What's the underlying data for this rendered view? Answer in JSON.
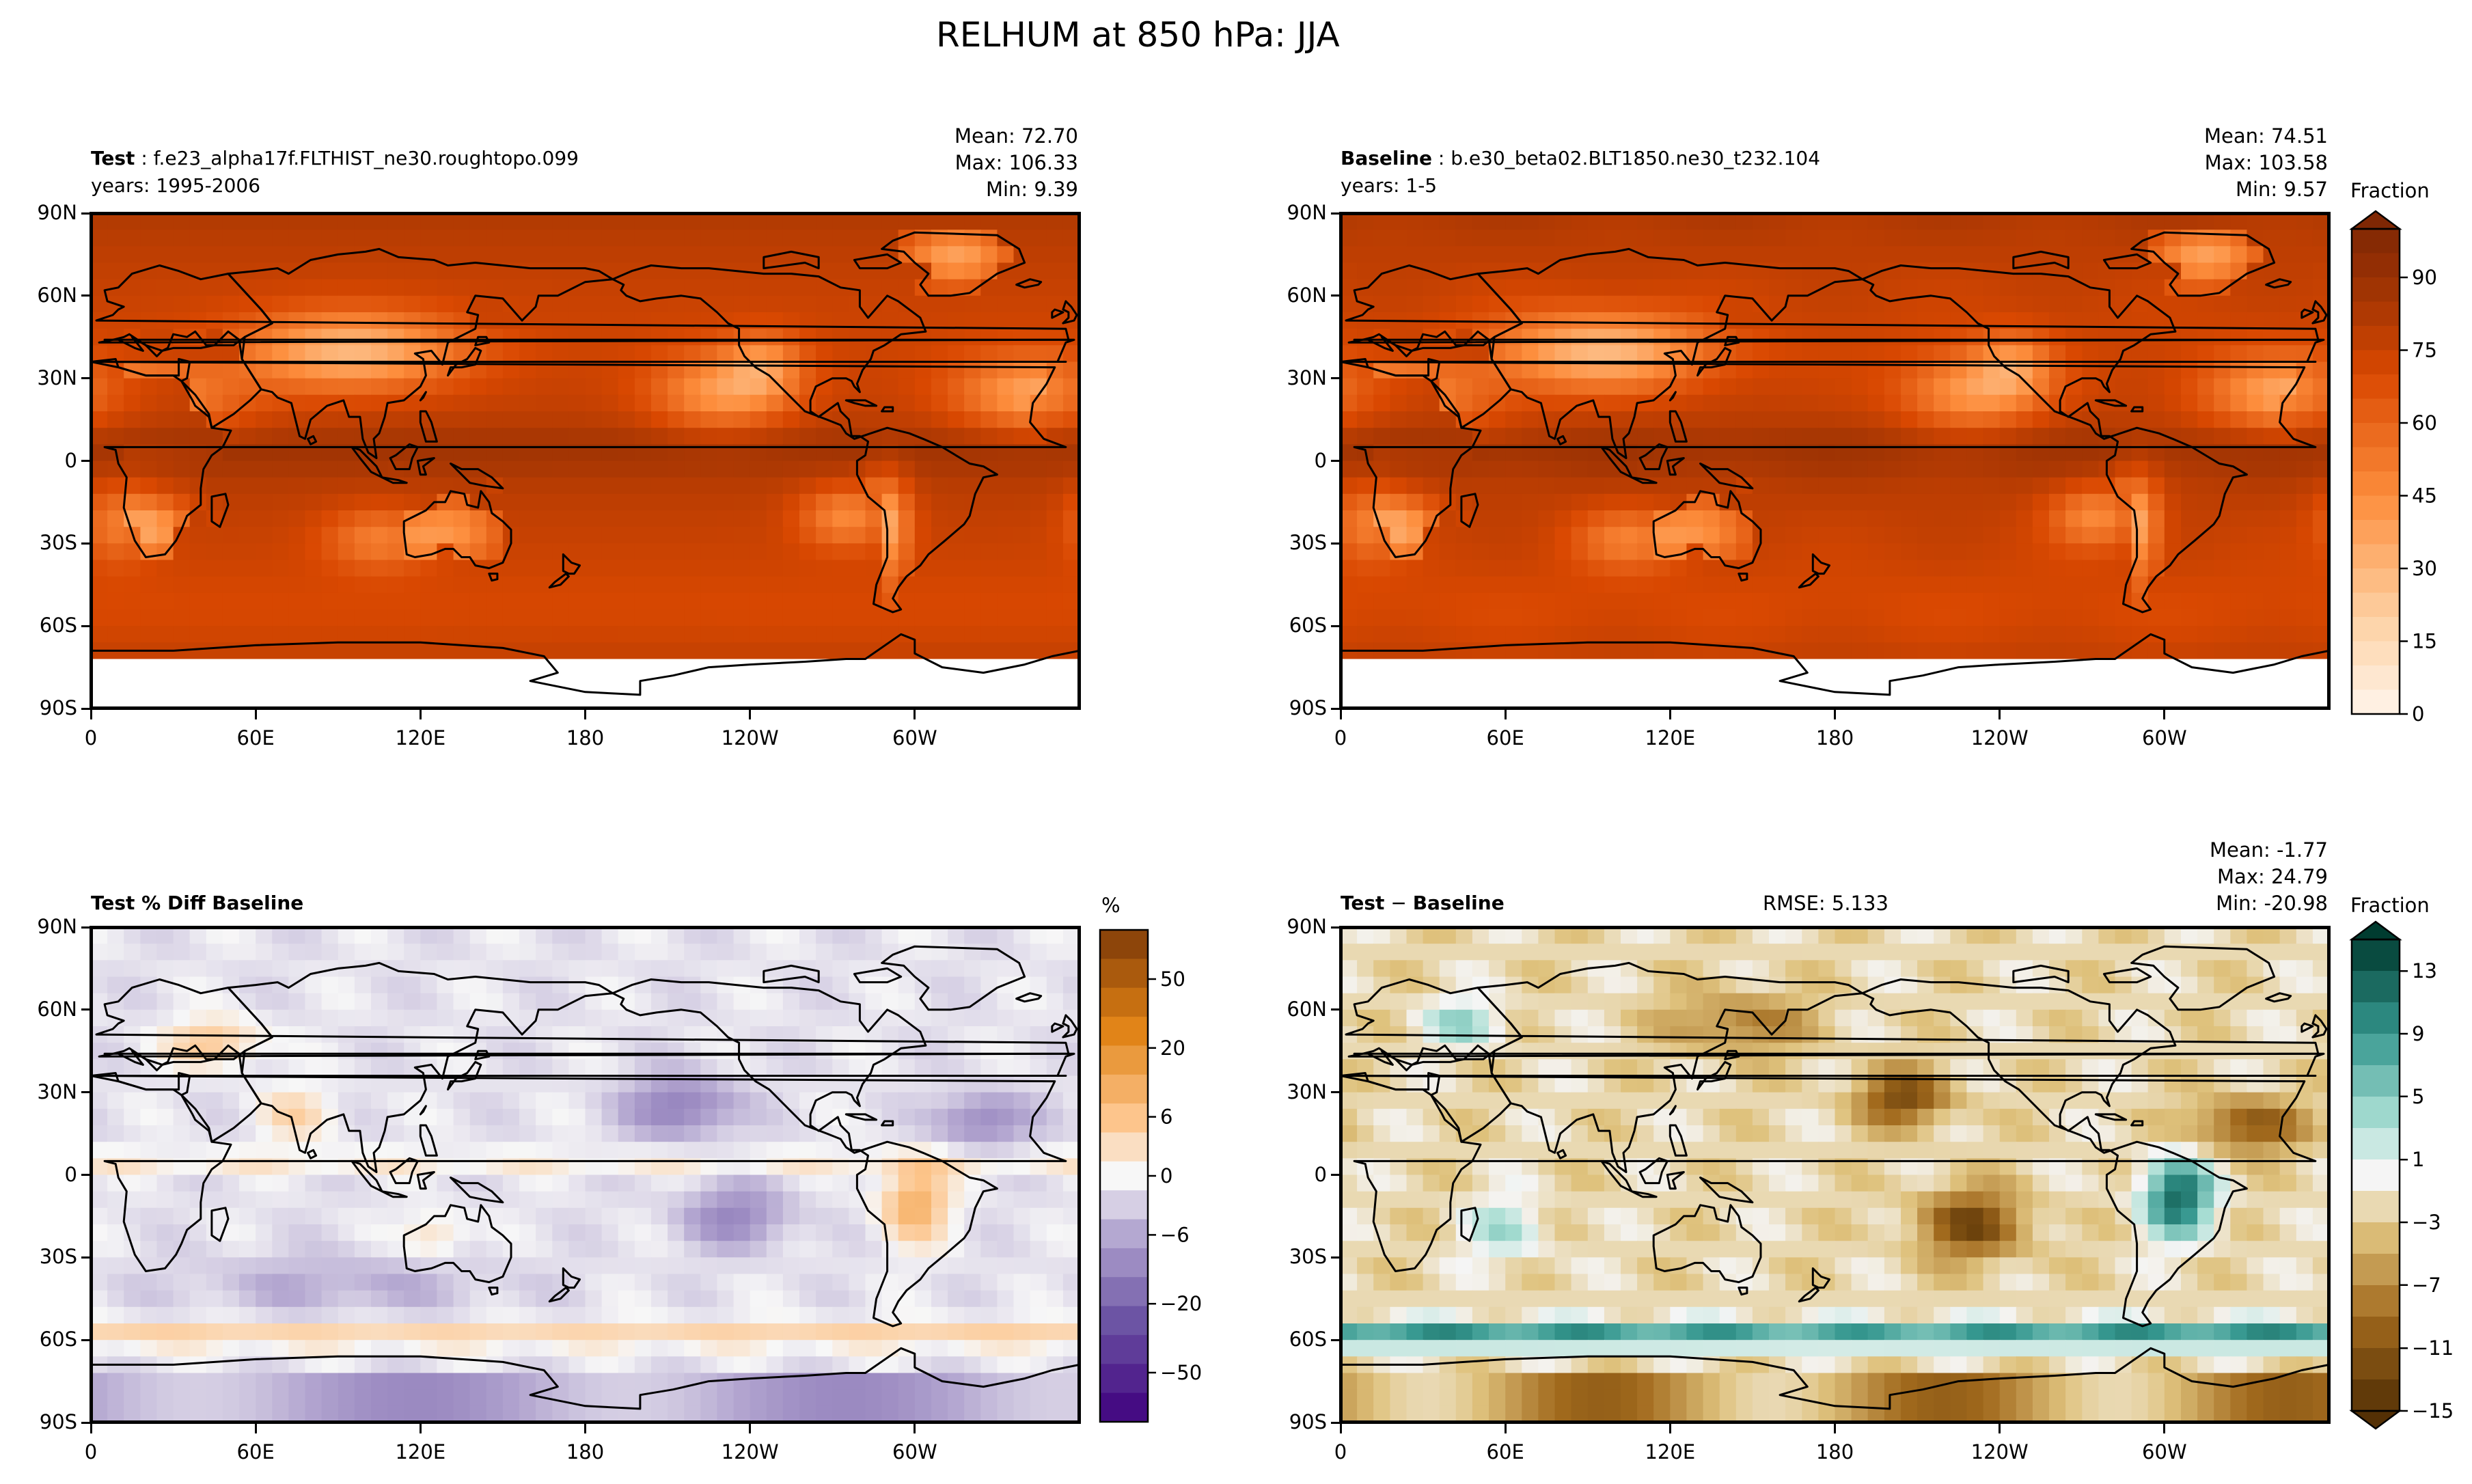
{
  "figure": {
    "title": "RELHUM at 850 hPa: JJA"
  },
  "panels": {
    "test": {
      "label_bold": "Test",
      "label_rest": " : f.e23_alpha17f.FLTHIST_ne30.roughtopo.099",
      "years": "years: 1995-2006",
      "mean": "Mean: 72.70",
      "max": "Max: 106.33",
      "min": "Min:  9.39"
    },
    "baseline": {
      "label_bold": "Baseline",
      "label_rest": " : b.e30_beta02.BLT1850.ne30_t232.104",
      "years": "years: 1-5",
      "mean": "Mean: 74.51",
      "max": "Max: 103.58",
      "min": "Min:  9.57"
    },
    "pctdiff": {
      "label_bold": "Test % Diff Baseline"
    },
    "diff": {
      "label_bold": "Test",
      "label_mid": " − ",
      "label_bold2": "Baseline",
      "rmse": "RMSE: 5.133",
      "mean": "Mean: -1.77",
      "max": "Max: 24.79",
      "min": "Min: -20.98"
    }
  },
  "axes": {
    "lat_ticks": [
      "90N",
      "60N",
      "30N",
      "0",
      "30S",
      "60S",
      "90S"
    ],
    "lon_ticks": [
      "0",
      "60E",
      "120E",
      "180",
      "120W",
      "60W"
    ]
  },
  "colorbars": {
    "relhum": {
      "title": "Fraction",
      "ticks": [
        "90",
        "75",
        "60",
        "45",
        "30",
        "15",
        "0"
      ]
    },
    "pct": {
      "title": "%",
      "ticks": [
        "50",
        "20",
        "6",
        "0",
        "−6",
        "−20",
        "−50"
      ]
    },
    "diff": {
      "title": "Fraction",
      "ticks": [
        "13",
        "9",
        "5",
        "1",
        "−3",
        "−7",
        "−11",
        "−15"
      ]
    }
  },
  "chart_data": [
    {
      "type": "heatmap",
      "title": "Test : f.e23_alpha17f.FLTHIST_ne30.roughtopo.099",
      "variable": "RELHUM",
      "level": "850 hPa",
      "season": "JJA",
      "mean": 72.7,
      "max": 106.33,
      "min": 9.39,
      "colorbar_range": [
        0,
        100
      ],
      "xlabel": "",
      "ylabel": ""
    },
    {
      "type": "heatmap",
      "title": "Baseline : b.e30_beta02.BLT1850.ne30_t232.104",
      "mean": 74.51,
      "max": 103.58,
      "min": 9.57,
      "colorbar_range": [
        0,
        100
      ]
    },
    {
      "type": "heatmap",
      "title": "Test % Diff Baseline",
      "colorbar_levels": [
        -50,
        -20,
        -6,
        0,
        6,
        20,
        50
      ]
    },
    {
      "type": "heatmap",
      "title": "Test − Baseline",
      "rmse": 5.133,
      "mean": -1.77,
      "max": 24.79,
      "min": -20.98,
      "colorbar_range": [
        -15,
        15
      ]
    }
  ],
  "colors": {
    "relhum_low": "#fff5eb",
    "relhum_high": "#7f2704",
    "pct_neg": "#3f007d",
    "pct_pos": "#7f3b08",
    "diff_neg": "#543005",
    "diff_pos": "#003c30"
  }
}
